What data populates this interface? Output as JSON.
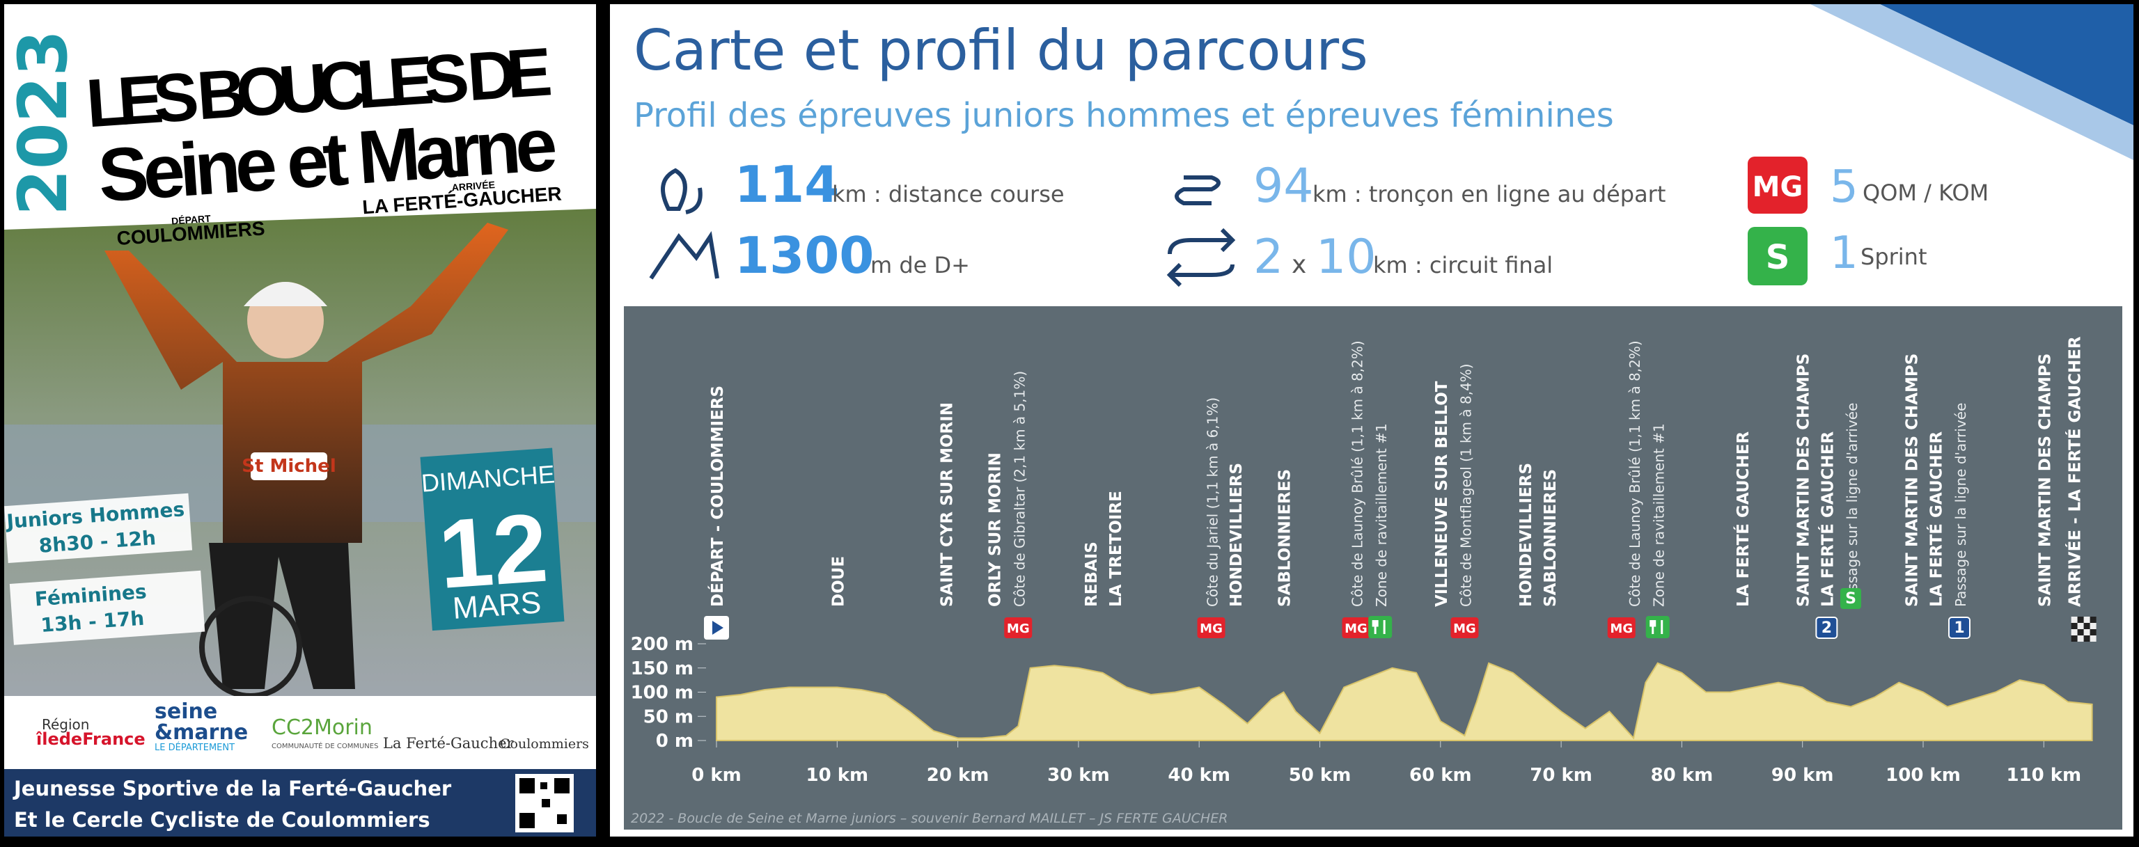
{
  "poster": {
    "year": "2023",
    "title_line1": "LES BOUCLES DE",
    "title_line2": "Seine et Marne",
    "depart_label": "DÉPART",
    "depart": "COULOMMIERS",
    "arrivee_label": "ARRIVÉE",
    "arrivee": "LA FERTÉ-GAUCHER",
    "races": [
      {
        "name": "Juniors Hommes",
        "time": "8h30 - 12h"
      },
      {
        "name": "Féminines",
        "time": "13h - 17h"
      }
    ],
    "date": {
      "weekday": "DIMANCHE",
      "day": "12",
      "month": "MARS"
    },
    "sponsors": {
      "region1": "Région",
      "region2": "îledeFrance",
      "sm1": "seine",
      "sm2": "&marne",
      "sm3": "LE DÉPARTEMENT",
      "cc": "CC2Morin",
      "cc_sub": "COMMUNAUTÉ DE COMMUNES",
      "lfg": "La Ferté-Gaucher",
      "coul": "Coulommiers"
    },
    "footer": [
      "Jeunesse Sportive de la Ferté-Gaucher",
      "Et le Cercle Cycliste de Coulommiers"
    ]
  },
  "panel": {
    "title": "Carte et profil du parcours",
    "subtitle": "Profil des épreuves juniors hommes et épreuves féminines",
    "stats": {
      "distance": {
        "value": "114",
        "text": "km : distance course"
      },
      "climb": {
        "value": "1300",
        "text": "m  de D+"
      },
      "line": {
        "value": "94",
        "text": "km : tronçon en ligne au départ"
      },
      "circuit": {
        "laps": "2",
        "x": "x",
        "value": "10",
        "text": "km : circuit final"
      },
      "qom": {
        "badge": "MG",
        "value": "5",
        "text": "QOM / KOM"
      },
      "sprint": {
        "badge": "S",
        "value": "1",
        "text": "Sprint"
      }
    },
    "credit": "2022 - Boucle de Seine et Marne juniors – souvenir Bernard MAILLET – JS FERTE GAUCHER"
  },
  "profile": {
    "type": "area",
    "xlim": [
      0,
      114
    ],
    "ylim": [
      0,
      200
    ],
    "xticks": [
      {
        "value": 0,
        "label": "0 km"
      },
      {
        "value": 10,
        "label": "10 km"
      },
      {
        "value": 20,
        "label": "20 km"
      },
      {
        "value": 30,
        "label": "30 km"
      },
      {
        "value": 40,
        "label": "40 km"
      },
      {
        "value": 50,
        "label": "50 km"
      },
      {
        "value": 60,
        "label": "60 km"
      },
      {
        "value": 70,
        "label": "70 km"
      },
      {
        "value": 80,
        "label": "80 km"
      },
      {
        "value": 90,
        "label": "90 km"
      },
      {
        "value": 100,
        "label": "100 km"
      },
      {
        "value": 110,
        "label": "110 km"
      }
    ],
    "yticks": [
      {
        "value": 0,
        "label": "0 m"
      },
      {
        "value": 50,
        "label": "50 m"
      },
      {
        "value": 100,
        "label": "100 m"
      },
      {
        "value": 150,
        "label": "150 m"
      },
      {
        "value": 200,
        "label": "200 m"
      }
    ],
    "color": "#efe3a0",
    "km": [
      0,
      2,
      4,
      6,
      8,
      10,
      12,
      14,
      16,
      18,
      20,
      22,
      24,
      25,
      26,
      28,
      30,
      32,
      34,
      36,
      38,
      40,
      42,
      44,
      46,
      47,
      48,
      50,
      52,
      54,
      56,
      58,
      60,
      62,
      63,
      64,
      66,
      68,
      70,
      72,
      74,
      76,
      77,
      78,
      80,
      82,
      84,
      86,
      88,
      90,
      92,
      94,
      96,
      98,
      100,
      102,
      104,
      106,
      108,
      110,
      112,
      114
    ],
    "elevation": [
      90,
      95,
      105,
      110,
      110,
      110,
      105,
      95,
      60,
      20,
      5,
      5,
      10,
      30,
      150,
      155,
      150,
      140,
      110,
      95,
      100,
      110,
      75,
      35,
      85,
      100,
      60,
      15,
      110,
      130,
      150,
      140,
      40,
      10,
      80,
      160,
      140,
      100,
      60,
      25,
      60,
      5,
      120,
      160,
      140,
      100,
      100,
      110,
      120,
      110,
      80,
      70,
      90,
      120,
      100,
      70,
      85,
      100,
      125,
      115,
      80,
      75
    ],
    "annotations": [
      {
        "label": "DÉPART - COULOMMIERS",
        "km": 0
      },
      {
        "label": "DOUE",
        "km": 10
      },
      {
        "label": "SAINT CYR SUR MORIN",
        "km": 19
      },
      {
        "label": "ORLY SUR MORIN",
        "km": 23
      },
      {
        "label": "Côte de Gibraltar (2,1 km à 5,1%)",
        "km": 25
      },
      {
        "label": "REBAIS",
        "km": 31
      },
      {
        "label": "LA TRETOIRE",
        "km": 33
      },
      {
        "label": "Côte du Jariel (1,1 km à 6,1%)",
        "km": 41
      },
      {
        "label": "HONDEVILLIERS",
        "km": 43
      },
      {
        "label": "SABLONNIERES",
        "km": 47
      },
      {
        "label": "Côte de Launoy Brûlé (1,1 km à 8,2%)",
        "km": 53
      },
      {
        "label": "Zone de ravitaillement #1",
        "km": 55
      },
      {
        "label": "VILLENEUVE SUR BELLOT",
        "km": 60
      },
      {
        "label": "Côte de Montflageol (1 km à 8,4%)",
        "km": 62
      },
      {
        "label": "HONDEVILLIERS",
        "km": 67
      },
      {
        "label": "SABLONNIERES",
        "km": 69
      },
      {
        "label": "Côte de Launoy Brûlé (1,1 km à 8,2%)",
        "km": 76
      },
      {
        "label": "Zone de ravitaillement #1",
        "km": 78
      },
      {
        "label": "LA FERTÉ GAUCHER",
        "km": 85
      },
      {
        "label": "SAINT MARTIN DES CHAMPS",
        "km": 90
      },
      {
        "label": "LA FERTÉ GAUCHER",
        "km": 92
      },
      {
        "label": "Passage sur la ligne d'arrivée",
        "km": 94
      },
      {
        "label": "SAINT MARTIN DES CHAMPS",
        "km": 99
      },
      {
        "label": "LA FERTÉ GAUCHER",
        "km": 101
      },
      {
        "label": "Passage sur la ligne d'arrivée",
        "km": 103
      },
      {
        "label": "SAINT MARTIN DES CHAMPS",
        "km": 110
      },
      {
        "label": "ARRIVÉE - LA FERTÉ GAUCHER",
        "km": 112.5
      }
    ],
    "markers": [
      {
        "text": "MG",
        "km": 25
      },
      {
        "text": "MG",
        "km": 41
      },
      {
        "text": "MG",
        "km": 53
      },
      {
        "text": "MG",
        "km": 62
      },
      {
        "text": "MG",
        "km": 75
      },
      {
        "text": "S",
        "km": 94
      },
      {
        "text": "2",
        "km": 92
      },
      {
        "text": "1",
        "km": 103
      }
    ],
    "supply_km": [
      55,
      78
    ]
  }
}
